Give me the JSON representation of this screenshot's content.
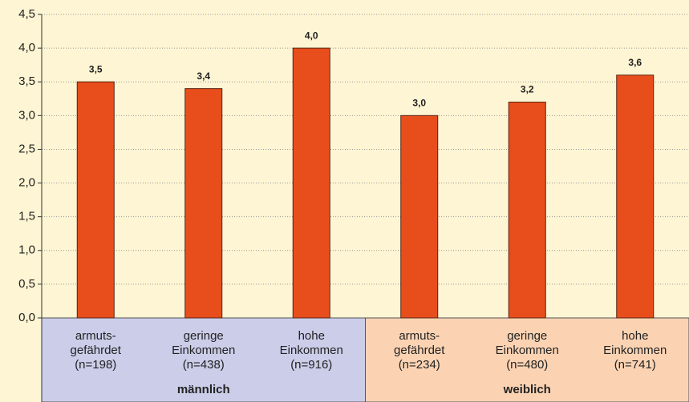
{
  "chart_data": {
    "type": "bar",
    "categories": [
      "armuts-\ngefährdet\n(n=198)",
      "geringe\nEinkommen\n(n=438)",
      "hohe\nEinkommen\n(n=916)",
      "armuts-\ngefährdet\n(n=234)",
      "geringe\nEinkommen\n(n=480)",
      "hohe\nEinkommen\n(n=741)"
    ],
    "values": [
      3.5,
      3.4,
      4.0,
      3.0,
      3.2,
      3.6
    ],
    "value_labels": [
      "3,5",
      "3,4",
      "4,0",
      "3,0",
      "3,2",
      "3,6"
    ],
    "color": "#e84e1b",
    "groups": [
      {
        "name": "männlich",
        "color": "#cbcde9"
      },
      {
        "name": "weiblich",
        "color": "#fbd3b3"
      }
    ],
    "ylim": [
      0,
      4.5
    ],
    "yticks": [
      {
        "value": 0,
        "label": "0,0"
      },
      {
        "value": 0.5,
        "label": "0,5"
      },
      {
        "value": 1,
        "label": "1,0"
      },
      {
        "value": 1.5,
        "label": "1,5"
      },
      {
        "value": 2,
        "label": "2,0"
      },
      {
        "value": 2.5,
        "label": "2,5"
      },
      {
        "value": 3,
        "label": "3,0"
      },
      {
        "value": 3.5,
        "label": "3,5"
      },
      {
        "value": 4,
        "label": "4,0"
      },
      {
        "value": 4.5,
        "label": "4,5"
      }
    ],
    "grid": true
  }
}
